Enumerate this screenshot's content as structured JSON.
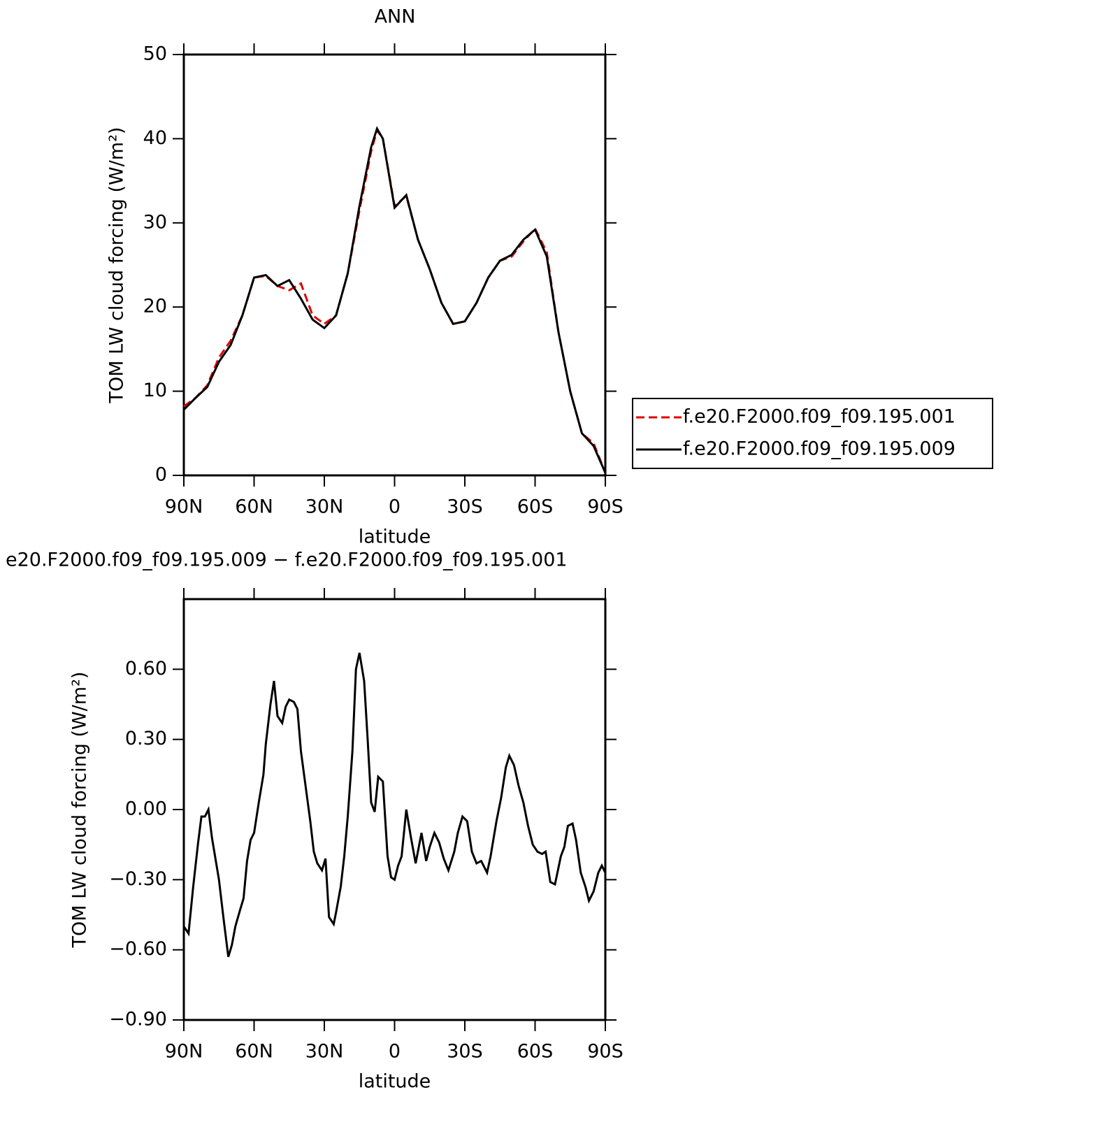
{
  "chart_data": [
    {
      "type": "line",
      "title": "ANN",
      "xlabel": "latitude",
      "ylabel": "TOM LW cloud forcing (W/m²)",
      "x": [
        90,
        85,
        80,
        75,
        70,
        65,
        60,
        55,
        50,
        45,
        40,
        35,
        30,
        25,
        20,
        15,
        10,
        7.5,
        5,
        0,
        -5,
        -10,
        -15,
        -20,
        -25,
        -30,
        -35,
        -40,
        -45,
        -50,
        -55,
        -60,
        -65,
        -70,
        -75,
        -80,
        -85,
        -90
      ],
      "series": [
        {
          "name": "f.e20.F2000.f09_f09.195.001",
          "color": "#e00000",
          "style": "dashed",
          "values": [
            8.2,
            9.2,
            10.7,
            14,
            16,
            19,
            23.5,
            23.7,
            22.5,
            22,
            22.8,
            19,
            18,
            19,
            24,
            31.5,
            38.5,
            41,
            40,
            32,
            33.2,
            28,
            24.5,
            20.5,
            18,
            18.3,
            20.5,
            23.5,
            25.5,
            26,
            27.8,
            29.3,
            26.5,
            17,
            10,
            5,
            3.8,
            0.3
          ]
        },
        {
          "name": "f.e20.F2000.f09_f09.195.009",
          "color": "#000000",
          "style": "solid",
          "values": [
            7.8,
            9.2,
            10.5,
            13.5,
            15.5,
            19,
            23.5,
            23.8,
            22.5,
            23.2,
            21,
            18.5,
            17.5,
            19,
            24,
            32,
            39,
            41.2,
            40,
            31.8,
            33.3,
            28,
            24.5,
            20.5,
            18,
            18.3,
            20.5,
            23.5,
            25.5,
            26.2,
            28,
            29.2,
            26,
            17,
            10,
            5,
            3.5,
            0.3
          ]
        }
      ],
      "xlim": [
        90,
        -90
      ],
      "xticks": [
        {
          "value": 90,
          "label": "90N"
        },
        {
          "value": 60,
          "label": "60N"
        },
        {
          "value": 30,
          "label": "30N"
        },
        0,
        {
          "value": -30,
          "label": "30S"
        },
        {
          "value": -60,
          "label": "60S"
        },
        {
          "value": -90,
          "label": "90S"
        }
      ],
      "ylim": [
        0,
        50
      ],
      "yticks": [
        0,
        10,
        20,
        30,
        40,
        50
      ],
      "legend": "right"
    },
    {
      "type": "line",
      "title": "e20.F2000.f09_f09.195.009 − f.e20.F2000.f09_f09.195.001",
      "xlabel": "latitude",
      "ylabel": "TOM LW cloud forcing (W/m²)",
      "x": [
        90,
        88,
        86,
        84,
        82.5,
        81,
        79.5,
        78,
        76.5,
        75,
        73,
        71,
        69.5,
        68,
        66,
        64.5,
        63,
        61.5,
        60,
        58,
        56,
        55,
        53,
        51.5,
        50,
        48,
        46.5,
        45,
        43,
        41.5,
        40,
        38,
        36,
        34.5,
        33,
        31,
        29.5,
        28,
        26,
        25,
        23,
        21.5,
        20,
        18,
        16.5,
        15,
        13,
        11.5,
        10,
        8.5,
        7,
        5,
        3,
        1.5,
        0,
        -1.5,
        -3,
        -5,
        -7,
        -9,
        -11.5,
        -13.5,
        -15,
        -17,
        -19,
        -21,
        -23,
        -25.5,
        -27,
        -29,
        -31,
        -33,
        -35,
        -37,
        -39.5,
        -41,
        -43.5,
        -45.5,
        -47.5,
        -49,
        -51,
        -53,
        -55,
        -57,
        -59,
        -61,
        -63,
        -64.5,
        -66.5,
        -68.5,
        -71,
        -72.5,
        -74,
        -76,
        -77.5,
        -79.5,
        -81.5,
        -83,
        -85,
        -87,
        -88.5,
        -90
      ],
      "series": [
        {
          "color": "#000000",
          "style": "solid",
          "values": [
            -0.5,
            -0.53,
            -0.33,
            -0.15,
            -0.03,
            -0.03,
            0,
            -0.12,
            -0.21,
            -0.3,
            -0.47,
            -0.63,
            -0.58,
            -0.5,
            -0.43,
            -0.38,
            -0.22,
            -0.13,
            -0.1,
            0.03,
            0.15,
            0.28,
            0.45,
            0.55,
            0.4,
            0.37,
            0.44,
            0.47,
            0.46,
            0.43,
            0.25,
            0.1,
            -0.05,
            -0.18,
            -0.23,
            -0.26,
            -0.21,
            -0.46,
            -0.49,
            -0.44,
            -0.33,
            -0.2,
            -0.03,
            0.25,
            0.6,
            0.67,
            0.55,
            0.3,
            0.03,
            -0.01,
            0.14,
            0.12,
            -0.2,
            -0.29,
            -0.3,
            -0.24,
            -0.2,
            0,
            -0.12,
            -0.23,
            -0.1,
            -0.22,
            -0.16,
            -0.1,
            -0.14,
            -0.21,
            -0.26,
            -0.18,
            -0.1,
            -0.03,
            -0.05,
            -0.18,
            -0.23,
            -0.22,
            -0.27,
            -0.2,
            -0.05,
            0.05,
            0.18,
            0.23,
            0.19,
            0.1,
            0.03,
            -0.07,
            -0.15,
            -0.18,
            -0.19,
            -0.18,
            -0.31,
            -0.32,
            -0.2,
            -0.16,
            -0.07,
            -0.06,
            -0.13,
            -0.27,
            -0.33,
            -0.39,
            -0.35,
            -0.27,
            -0.24,
            -0.27
          ]
        }
      ],
      "xlim": [
        90,
        -90
      ],
      "xticks": [
        {
          "value": 90,
          "label": "90N"
        },
        {
          "value": 60,
          "label": "60N"
        },
        {
          "value": 30,
          "label": "30N"
        },
        0,
        {
          "value": -30,
          "label": "30S"
        },
        {
          "value": -60,
          "label": "60S"
        },
        {
          "value": -90,
          "label": "90S"
        }
      ],
      "ylim": [
        -0.9,
        0.9
      ],
      "yticks": [
        {
          "value": -0.9,
          "label": "−0.90"
        },
        {
          "value": -0.6,
          "label": "−0.60"
        },
        {
          "value": -0.3,
          "label": "−0.30"
        },
        {
          "value": 0,
          "label": "0.00"
        },
        {
          "value": 0.3,
          "label": "0.30"
        },
        {
          "value": 0.6,
          "label": "0.60"
        }
      ]
    }
  ]
}
